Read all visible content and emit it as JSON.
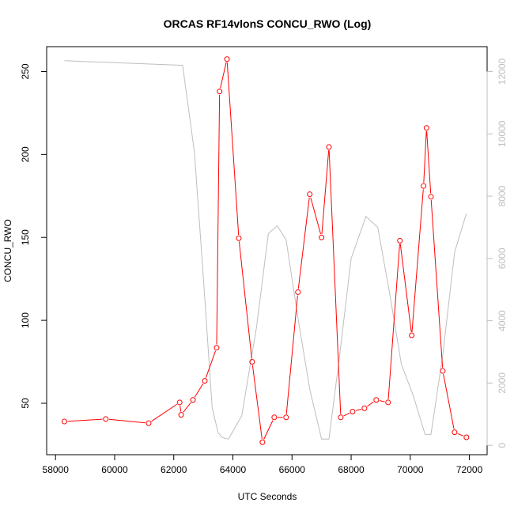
{
  "chart_data": {
    "type": "line",
    "title": "ORCAS RF14vlonS CONCU_RWO (Log)",
    "xlabel": "UTC Seconds",
    "ylabel": "CONCU_RWO",
    "xlim": [
      57700,
      72600
    ],
    "ylim": [
      19,
      265
    ],
    "y2lim": [
      -300,
      12800
    ],
    "x_ticks": [
      58000,
      60000,
      62000,
      64000,
      66000,
      68000,
      70000,
      72000
    ],
    "y_ticks": [
      50,
      100,
      150,
      200,
      250
    ],
    "y2_ticks": [
      0,
      2000,
      4000,
      6000,
      8000,
      10000,
      12000
    ],
    "grid": false,
    "legend": "none",
    "series": [
      {
        "axis": "left",
        "color": "#ff0000",
        "style": "line+open-circles",
        "x": [
          58300,
          59700,
          61150,
          62200,
          62250,
          62650,
          63050,
          63450,
          63550,
          63800,
          64200,
          64650,
          65000,
          65400,
          65800,
          66200,
          66600,
          67000,
          67250,
          67650,
          68050,
          68450,
          68850,
          69250,
          69650,
          70050,
          70450,
          70550,
          70700,
          71100,
          71500,
          71900
        ],
        "y": [
          39,
          40.5,
          38,
          50.5,
          43,
          52,
          63.5,
          83.5,
          238,
          257.5,
          149.5,
          75,
          26.5,
          41.5,
          41.5,
          117,
          176,
          150,
          204.5,
          41.5,
          45,
          47,
          52,
          50.5,
          148,
          91,
          181,
          216,
          174.5,
          69.5,
          32.5,
          29.5
        ]
      },
      {
        "axis": "right",
        "color": "#bebebe",
        "style": "line",
        "x": [
          58300,
          62300,
          62700,
          63000,
          63300,
          63500,
          63650,
          63850,
          64300,
          64800,
          65200,
          65500,
          65800,
          66200,
          66600,
          67000,
          67250,
          67600,
          68000,
          68500,
          68900,
          69300,
          69700,
          70100,
          70500,
          70700,
          71100,
          71500,
          71900
        ],
        "y": [
          12350,
          12200,
          9400,
          5400,
          1200,
          400,
          250,
          200,
          950,
          3800,
          6800,
          7050,
          6600,
          4100,
          1800,
          200,
          200,
          2800,
          6000,
          7350,
          7000,
          4900,
          2600,
          1600,
          350,
          350,
          2900,
          6200,
          7450
        ]
      }
    ]
  }
}
